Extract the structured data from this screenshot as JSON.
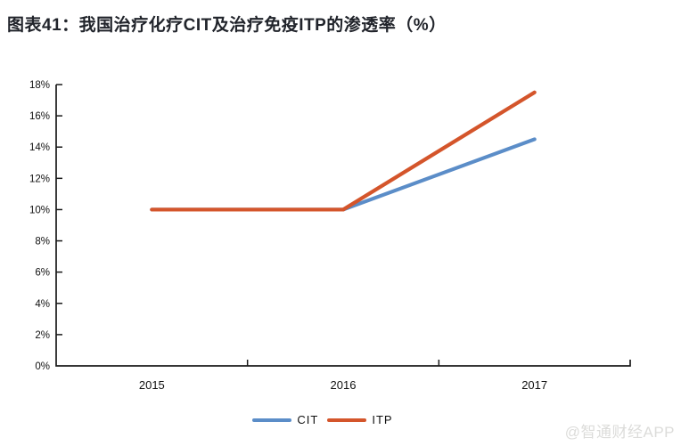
{
  "title": "图表41：我国治疗化疗CIT及治疗免疫ITP的渗透率（%）",
  "watermark": "@智通财经APP",
  "colors": {
    "cit_blue": "#5b8dc8",
    "itp_orange": "#d4552b",
    "axis": "#1a1a1a",
    "title_text": "#21242b",
    "watermark_gray": "#dcdcda"
  },
  "chart_data": {
    "type": "line",
    "categories": [
      "2015",
      "2016",
      "2017"
    ],
    "series": [
      {
        "name": "CIT",
        "color": "#5b8dc8",
        "values": [
          10,
          10,
          14.5
        ]
      },
      {
        "name": "ITP",
        "color": "#d4552b",
        "values": [
          10,
          10,
          17.5
        ]
      }
    ],
    "ylim": [
      0,
      18
    ],
    "y_tick_step": 2,
    "y_tick_labels": [
      "0%",
      "2%",
      "4%",
      "6%",
      "8%",
      "10%",
      "12%",
      "14%",
      "16%",
      "18%"
    ],
    "grid": false,
    "legend_position": "bottom"
  }
}
